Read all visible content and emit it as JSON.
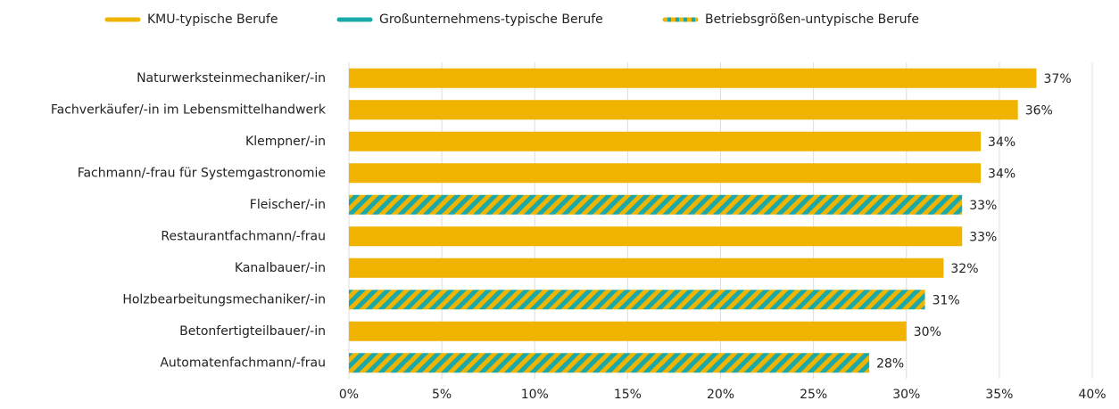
{
  "chart_data": {
    "type": "hbar",
    "categories": [
      "Naturwerksteinmechaniker/-in",
      "Fachverkäufer/-in im Lebensmittelhandwerk",
      "Klempner/-in",
      "Fachmann/-frau für Systemgastronomie",
      "Fleischer/-in",
      "Restaurantfachmann/-frau",
      "Kanalbauer/-in",
      "Holzbearbeitungsmechaniker/-in",
      "Betonfertigteilbauer/-in",
      "Automatenfachmann/-frau"
    ],
    "series": [
      {
        "name": "KMU-typische Berufe",
        "color": "#f0b400",
        "values": [
          37,
          36,
          34,
          34,
          null,
          33,
          32,
          null,
          30,
          null
        ],
        "value_labels": [
          "37%",
          "36%",
          "34%",
          "34%",
          null,
          "33%",
          "32%",
          null,
          "30%",
          null
        ]
      },
      {
        "name": "Großunternehmens-typische Berufe",
        "color": "#1aa8a8",
        "values": [
          null,
          null,
          null,
          null,
          null,
          null,
          null,
          null,
          null,
          null
        ],
        "value_labels": [
          null,
          null,
          null,
          null,
          null,
          null,
          null,
          null,
          null,
          null
        ]
      },
      {
        "name": "Betriebsgrößen-untypische Berufe",
        "color": "#f0b400",
        "stripe_color": "#1aa8a8",
        "values": [
          null,
          null,
          null,
          null,
          33,
          null,
          null,
          31,
          null,
          28
        ],
        "value_labels": [
          null,
          null,
          null,
          null,
          "33%",
          null,
          null,
          "31%",
          null,
          "28%"
        ]
      }
    ],
    "xlim": [
      0,
      40
    ],
    "xticks": [
      {
        "value": 0,
        "label": "0%"
      },
      {
        "value": 5,
        "label": "5%"
      },
      {
        "value": 10,
        "label": "10%"
      },
      {
        "value": 15,
        "label": "15%"
      },
      {
        "value": 20,
        "label": "20%"
      },
      {
        "value": 25,
        "label": "25%"
      },
      {
        "value": 30,
        "label": "30%"
      },
      {
        "value": 35,
        "label": "35%"
      },
      {
        "value": 40,
        "label": "40%"
      }
    ],
    "grid": true
  }
}
